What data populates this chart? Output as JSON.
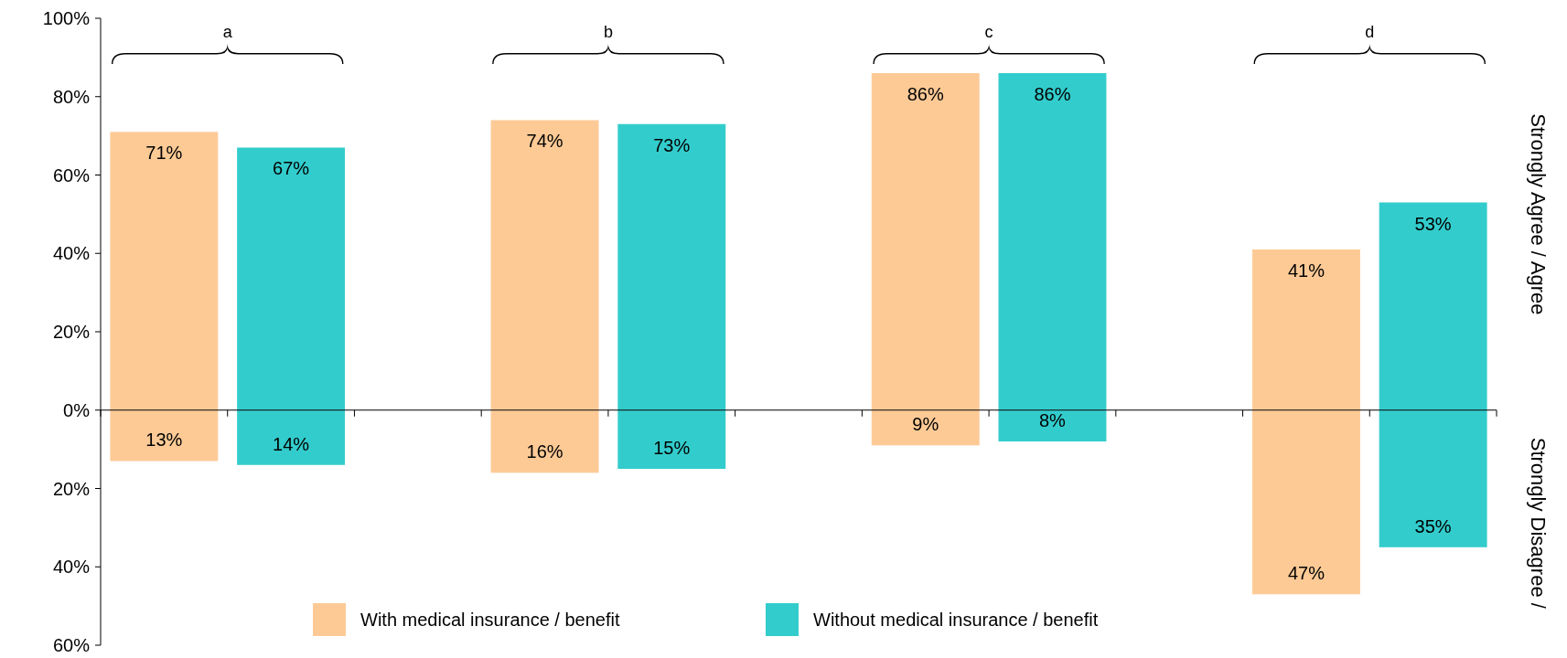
{
  "chart_data": {
    "type": "bar",
    "stacked": true,
    "categories": [
      null,
      null,
      null,
      null,
      null,
      null,
      null,
      null,
      null,
      null,
      null
    ],
    "series": [
      {
        "name": "With medical insurance / benefit",
        "color": "#fdca96",
        "values": [
          71,
          null,
          null,
          74,
          null,
          null,
          86,
          null,
          null,
          41,
          null
        ],
        "value_labels": [
          "71%",
          null,
          null,
          "74%",
          null,
          null,
          "86%",
          null,
          null,
          "41%",
          null
        ]
      },
      {
        "name": "Without medical insurance / benefit",
        "color": "#33cccc",
        "values": [
          null,
          67,
          null,
          null,
          73,
          null,
          null,
          86,
          null,
          null,
          53
        ],
        "value_labels": [
          null,
          "67%",
          null,
          null,
          "73%",
          null,
          null,
          "86%",
          null,
          null,
          "53%"
        ]
      },
      {
        "color": "#fdca96",
        "axis": "y2",
        "values": [
          13,
          null,
          null,
          16,
          null,
          null,
          9,
          null,
          null,
          47,
          null
        ],
        "value_labels": [
          "13%",
          null,
          null,
          "16%",
          null,
          null,
          "9%",
          null,
          null,
          "47%",
          null
        ]
      },
      {
        "color": "#33cccc",
        "axis": "y2",
        "values": [
          null,
          14,
          null,
          null,
          15,
          null,
          null,
          8,
          null,
          null,
          35
        ],
        "value_labels": [
          null,
          "14%",
          null,
          null,
          "15%",
          null,
          null,
          "8%",
          null,
          null,
          "35%"
        ]
      }
    ],
    "ylim": [
      -60,
      100
    ],
    "y2lim": [
      60,
      -100
    ],
    "y2ticks": [
      {
        "value": 60,
        "label": "60%"
      },
      {
        "value": 40,
        "label": "40%"
      },
      {
        "value": 20,
        "label": "20%"
      }
    ],
    "yticks": [
      {
        "value": 0,
        "label": "0%"
      },
      {
        "value": 20,
        "label": "20%"
      },
      {
        "value": 40,
        "label": "40%"
      },
      {
        "value": 60,
        "label": "60%"
      },
      {
        "value": 80,
        "label": "80%"
      },
      {
        "value": 100,
        "label": "100%"
      }
    ],
    "annotations": [
      "a",
      "b",
      "c",
      "d",
      "Strongly Agree / Agree",
      "Strongly Disagree /"
    ],
    "legend": "bottom"
  }
}
